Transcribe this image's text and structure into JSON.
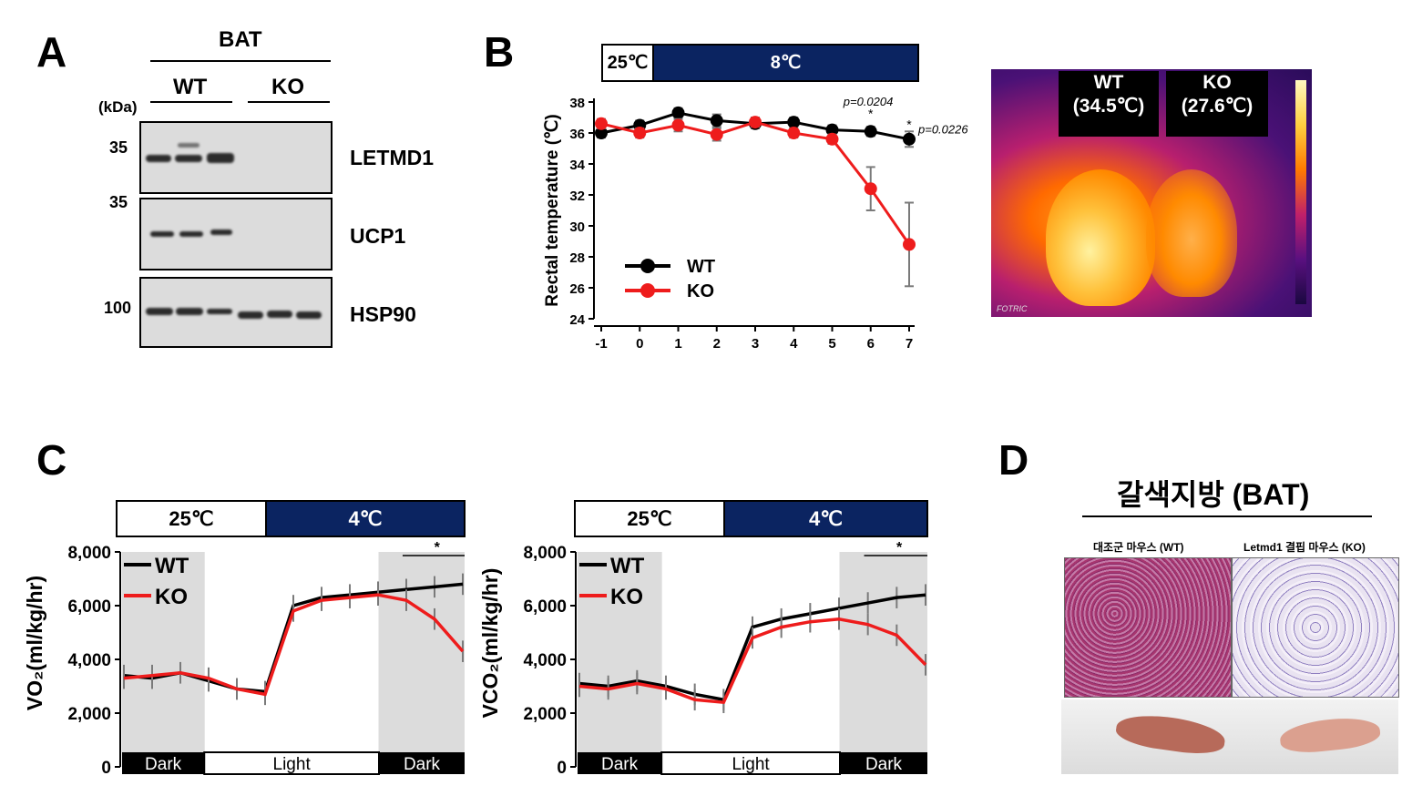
{
  "panels": {
    "a": "A",
    "b": "B",
    "c": "C",
    "d": "D"
  },
  "panel_a": {
    "tissue": "BAT",
    "group_wt": "WT",
    "group_ko": "KO",
    "kda_label": "(kDa)",
    "markers": [
      "35",
      "35",
      "100"
    ],
    "proteins": [
      "LETMD1",
      "UCP1",
      "HSP90"
    ]
  },
  "panel_b": {
    "temp_room": "25℃",
    "temp_cold": "8℃",
    "ylabel": "Rectal temperature (℃)",
    "pvalue_day6": "p=0.0204",
    "pvalue_day7": "p=0.0226",
    "star": "*",
    "legend": [
      "WT",
      "KO"
    ],
    "thermal_wt": "WT",
    "thermal_wt_temp": "(34.5℃)",
    "thermal_ko": "KO",
    "thermal_ko_temp": "(27.6℃)",
    "thermal_brand": "FOTRIC"
  },
  "panel_c": {
    "temp_room": "25℃",
    "temp_cold": "4℃",
    "ylabel_vo2": "VO₂(ml/kg/hr)",
    "ylabel_vco2": "VCO₂(ml/kg/hr)",
    "phases": [
      "Dark",
      "Light",
      "Dark"
    ],
    "legend": [
      "WT",
      "KO"
    ],
    "star": "*"
  },
  "panel_d": {
    "title": "갈색지방 (BAT)",
    "label_wt": "대조군 마우스 (WT)",
    "label_ko": "Letmd1 결핍 마우스 (KO)"
  },
  "colors": {
    "wt": "#000000",
    "ko": "#ee1c1c",
    "cold": "#0b2461",
    "shade": "#dcdcdc",
    "err": "#7a7a7a"
  },
  "chart_data": [
    {
      "type": "line",
      "name": "rectal-temperature",
      "x": [
        -1,
        0,
        1,
        2,
        3,
        4,
        5,
        6,
        7
      ],
      "xticks": [
        "-1",
        "0",
        "1",
        "2",
        "3",
        "4",
        "5",
        "6",
        "7"
      ],
      "ylabel": "Rectal temperature (℃)",
      "ylim": [
        24,
        38
      ],
      "yticks": [
        24,
        26,
        28,
        30,
        32,
        34,
        36,
        38
      ],
      "series": [
        {
          "name": "WT",
          "values": [
            36.0,
            36.5,
            37.3,
            36.8,
            36.6,
            36.7,
            36.2,
            36.1,
            35.6
          ],
          "err": [
            0.3,
            0.3,
            0.3,
            0.4,
            0.3,
            0.3,
            0.3,
            0.3,
            0.5
          ]
        },
        {
          "name": "KO",
          "values": [
            36.6,
            36.0,
            36.5,
            35.9,
            36.7,
            36.0,
            35.6,
            32.4,
            28.8
          ],
          "err": [
            0.3,
            0.3,
            0.4,
            0.4,
            0.3,
            0.3,
            0.3,
            1.4,
            2.7
          ]
        }
      ],
      "annotations": [
        "p=0.0204",
        "p=0.0226"
      ]
    },
    {
      "type": "line",
      "name": "VO2",
      "ylabel": "VO₂(ml/kg/hr)",
      "ylim": [
        0,
        8000
      ],
      "yticks": [
        "0",
        "2,000",
        "4,000",
        "6,000",
        "8,000"
      ],
      "series": [
        {
          "name": "WT",
          "values": [
            3400,
            3300,
            3500,
            3200,
            2900,
            2800,
            6000,
            6300,
            6400,
            6500,
            6600,
            6700,
            6800
          ]
        },
        {
          "name": "KO",
          "values": [
            3300,
            3400,
            3500,
            3300,
            2900,
            2700,
            5800,
            6200,
            6300,
            6400,
            6200,
            5500,
            4300
          ]
        }
      ]
    },
    {
      "type": "line",
      "name": "VCO2",
      "ylabel": "VCO₂(ml/kg/hr)",
      "ylim": [
        0,
        8000
      ],
      "yticks": [
        "0",
        "2,000",
        "4,000",
        "6,000",
        "8,000"
      ],
      "series": [
        {
          "name": "WT",
          "values": [
            3100,
            3000,
            3200,
            3000,
            2700,
            2500,
            5200,
            5500,
            5700,
            5900,
            6100,
            6300,
            6400
          ]
        },
        {
          "name": "KO",
          "values": [
            3000,
            2900,
            3100,
            2900,
            2500,
            2400,
            4800,
            5200,
            5400,
            5500,
            5300,
            4900,
            3800
          ]
        }
      ]
    }
  ]
}
